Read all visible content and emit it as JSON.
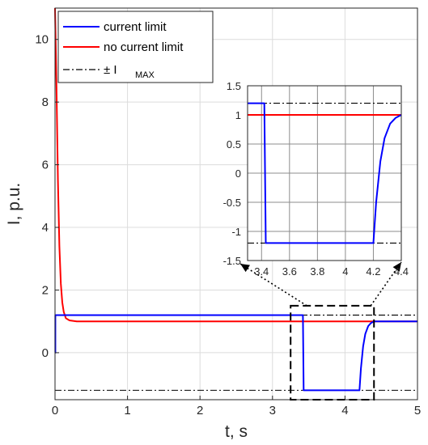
{
  "chart_data": [
    {
      "type": "line",
      "xlabel": "t, s",
      "ylabel": "I, p.u.",
      "xlim": [
        0,
        5
      ],
      "ylim": [
        -1.5,
        11
      ],
      "xticks": [
        0,
        1,
        2,
        3,
        4,
        5
      ],
      "yticks": [
        0,
        2,
        4,
        6,
        8,
        10
      ],
      "grid": true,
      "legend": {
        "placement": "top-left",
        "entries": [
          "current limit",
          "no current limit",
          "± I",
          "MAX"
        ]
      },
      "series": [
        {
          "name": "current limit",
          "color": "#0000ff",
          "x": [
            0,
            0.005,
            0.005,
            3.42,
            3.43,
            4.2,
            4.22,
            4.25,
            4.28,
            4.32,
            4.36,
            4.4,
            5.0
          ],
          "y": [
            0,
            0,
            1.2,
            1.2,
            -1.2,
            -1.2,
            -0.5,
            0.2,
            0.6,
            0.85,
            0.95,
            1.0,
            1.0
          ]
        },
        {
          "name": "no current limit",
          "color": "#ff0000",
          "x": [
            0,
            0.02,
            0.04,
            0.06,
            0.08,
            0.1,
            0.12,
            0.15,
            0.2,
            0.3,
            5.0
          ],
          "y": [
            11,
            8.5,
            5.5,
            3.4,
            2.2,
            1.6,
            1.3,
            1.1,
            1.03,
            1.0,
            1.0
          ]
        },
        {
          "name": "± I MAX",
          "color": "#000000",
          "style": "dashdot",
          "levels": [
            1.2,
            -1.2
          ]
        }
      ],
      "zoom_box": {
        "xlim": [
          3.25,
          4.4
        ],
        "ylim": [
          -1.5,
          1.5
        ]
      }
    },
    {
      "type": "line",
      "role": "inset",
      "xlim": [
        3.3,
        4.4
      ],
      "ylim": [
        -1.5,
        1.5
      ],
      "xticks": [
        "3.4",
        "3.6",
        "3.8",
        "4",
        "4.2",
        "4.4"
      ],
      "yticks": [
        "1.5",
        "1",
        "0.5",
        "0",
        "-0.5",
        "-1",
        "-1.5"
      ],
      "grid": true,
      "series": [
        {
          "name": "current limit",
          "color": "#0000ff",
          "x": [
            3.3,
            3.42,
            3.43,
            4.2,
            4.22,
            4.25,
            4.28,
            4.32,
            4.36,
            4.4
          ],
          "y": [
            1.2,
            1.2,
            -1.2,
            -1.2,
            -0.5,
            0.2,
            0.6,
            0.85,
            0.95,
            1.0
          ]
        },
        {
          "name": "no current limit",
          "color": "#ff0000",
          "x": [
            3.3,
            4.4
          ],
          "y": [
            1.0,
            1.0
          ]
        },
        {
          "name": "± I MAX",
          "color": "#000000",
          "style": "dashdot",
          "levels": [
            1.2,
            -1.2
          ]
        }
      ]
    }
  ]
}
